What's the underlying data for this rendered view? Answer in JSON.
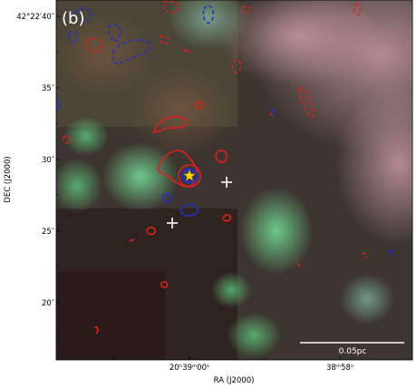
{
  "figure": {
    "panel_label": "(b)",
    "ylabel": "DEC (J2000)",
    "xlabel": "RA (J2000)",
    "scalebar_label": "0.05pc"
  },
  "axes": {
    "y_ticks": [
      {
        "label": "42°22′40″"
      },
      {
        "label": "35″"
      },
      {
        "label": "30″"
      },
      {
        "label": "25″"
      },
      {
        "label": "20″"
      }
    ],
    "x_ticks": [
      {
        "label": "20ʰ39ᵐ00ˢ"
      },
      {
        "label": "38ᵐ58ˢ"
      }
    ]
  },
  "colors": {
    "contour_red": "#e0201e",
    "contour_blue": "#2030c8",
    "marker_star": "#ffd400",
    "marker_cross": "#ffffff",
    "scalebar": "#ffffff"
  }
}
